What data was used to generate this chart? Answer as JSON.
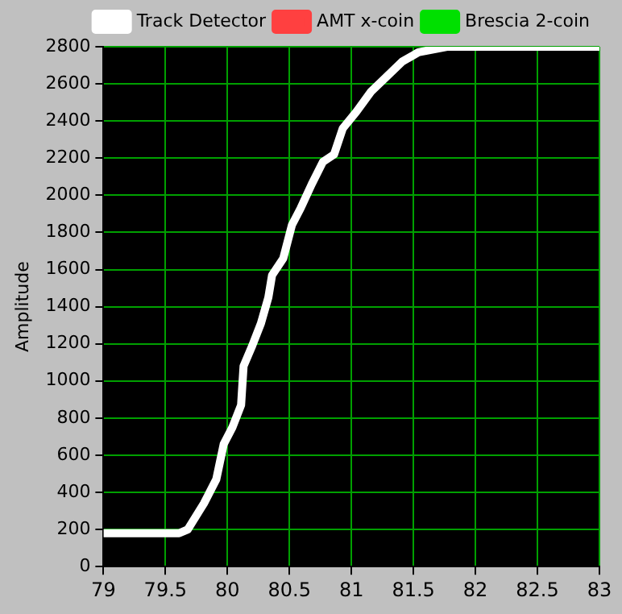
{
  "chart_data": {
    "type": "line",
    "ylabel": "Amplitude",
    "legend": "top",
    "grid": true,
    "marker": "none",
    "line_style": "solid",
    "xlim": [
      79,
      83
    ],
    "xticks": [
      79,
      79.5,
      80,
      80.5,
      81,
      81.5,
      82,
      82.5,
      83
    ],
    "ylim": [
      0,
      2800
    ],
    "yticks": [
      0,
      200,
      400,
      600,
      800,
      1000,
      1200,
      1400,
      1600,
      1800,
      2000,
      2200,
      2400,
      2600,
      2800
    ],
    "series": [
      {
        "name": "Track Detector",
        "color": "#ffffff",
        "x": [
          79,
          79.61,
          79.68,
          79.81,
          79.91,
          79.97,
          80.04,
          80.11,
          80.13,
          80.2,
          80.27,
          80.33,
          80.36,
          80.45,
          80.52,
          80.59,
          80.68,
          80.77,
          80.86,
          80.93,
          81.04,
          81.16,
          81.27,
          81.41,
          81.54,
          81.77,
          83
        ],
        "values": [
          180,
          180,
          200,
          340,
          470,
          660,
          750,
          870,
          1080,
          1190,
          1310,
          1450,
          1570,
          1660,
          1840,
          1930,
          2060,
          2180,
          2220,
          2360,
          2450,
          2560,
          2630,
          2720,
          2770,
          2800,
          2800
        ]
      },
      {
        "name": "AMT x-coin",
        "color": "#ff4040"
      },
      {
        "name": "Brescia 2-coin",
        "color": "#00e000"
      }
    ]
  }
}
